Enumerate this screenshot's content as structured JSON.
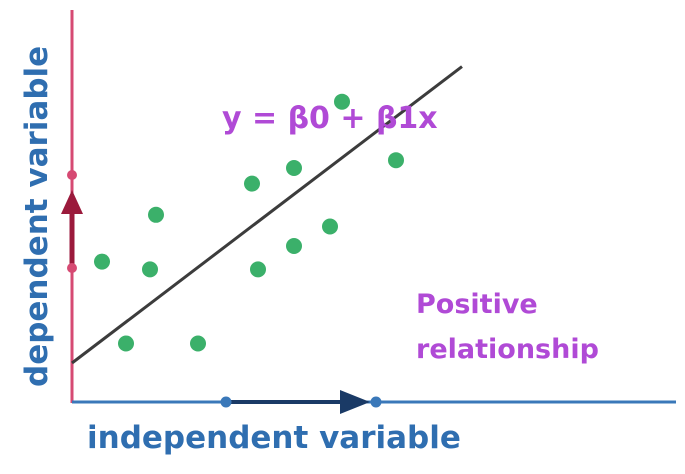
{
  "chart_data": {
    "type": "scatter",
    "xlabel": "independent variable",
    "ylabel": "dependent variable",
    "xlim": [
      0,
      10
    ],
    "ylim": [
      0,
      10
    ],
    "grid": false,
    "points": [
      {
        "x": 0.5,
        "y": 3.6
      },
      {
        "x": 0.9,
        "y": 1.5
      },
      {
        "x": 1.3,
        "y": 3.4
      },
      {
        "x": 1.4,
        "y": 4.8
      },
      {
        "x": 2.1,
        "y": 1.5
      },
      {
        "x": 3.0,
        "y": 5.6
      },
      {
        "x": 3.1,
        "y": 3.4
      },
      {
        "x": 3.7,
        "y": 4.0
      },
      {
        "x": 3.7,
        "y": 6.0
      },
      {
        "x": 4.3,
        "y": 4.5
      },
      {
        "x": 4.5,
        "y": 7.7
      },
      {
        "x": 5.4,
        "y": 6.2
      }
    ],
    "trendline": {
      "x1": 0,
      "y1": 1.0,
      "x2": 6.5,
      "y2": 8.6
    },
    "annotations": {
      "equation": "y = β0 + β1x",
      "relationship_line1": "Positive",
      "relationship_line2": "relationship"
    },
    "colors": {
      "x_axis": "#3a78b9",
      "x_arrow": "#1a3a66",
      "y_axis": "#d64a73",
      "y_arrow": "#9b1a3c",
      "points": "#3bb06a",
      "trendline": "#3c3c3c",
      "annotation": "#b04ad6",
      "xlabel": "#2f6eb0",
      "ylabel": "#2f6eb0"
    }
  }
}
